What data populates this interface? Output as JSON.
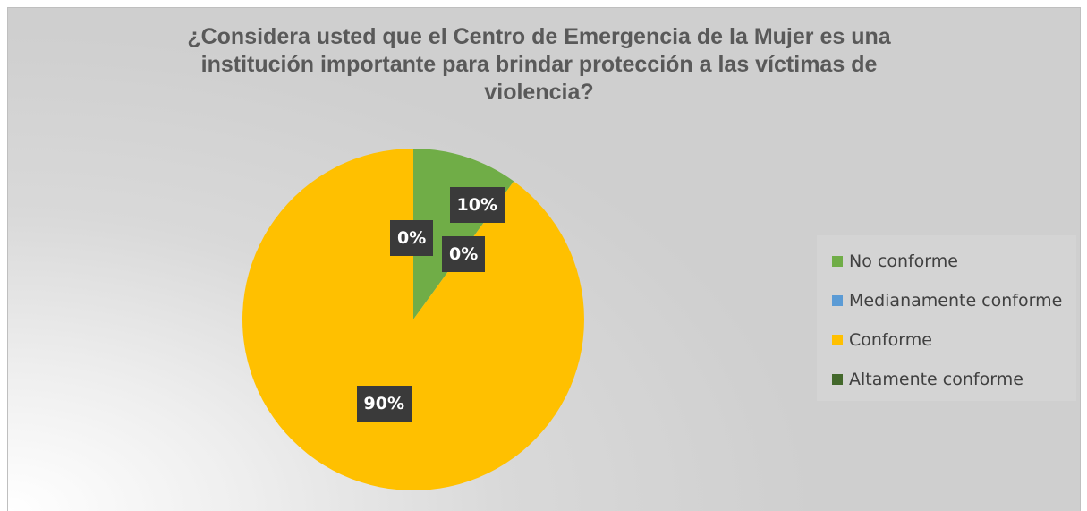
{
  "chart_data": {
    "type": "pie",
    "title": "¿Considera usted que el Centro de Emergencia de la Mujer es una institución importante para brindar protección a las víctimas de violencia?",
    "title_lines": [
      "¿Considera usted que el Centro de Emergencia de la Mujer es una",
      "institución importante para brindar protección a las víctimas de",
      "violencia?"
    ],
    "categories": [
      "No conforme",
      "Medianamente conforme",
      "Conforme",
      "Altamente conforme"
    ],
    "values": [
      10,
      0,
      90,
      0
    ],
    "data_labels": [
      "10%",
      "0%",
      "90%",
      "0%"
    ],
    "colors": [
      "#70ad47",
      "#5b9bd5",
      "#ffc000",
      "#43682b"
    ],
    "start_angle_deg": 0,
    "direction": "clockwise",
    "legend_position": "right"
  }
}
